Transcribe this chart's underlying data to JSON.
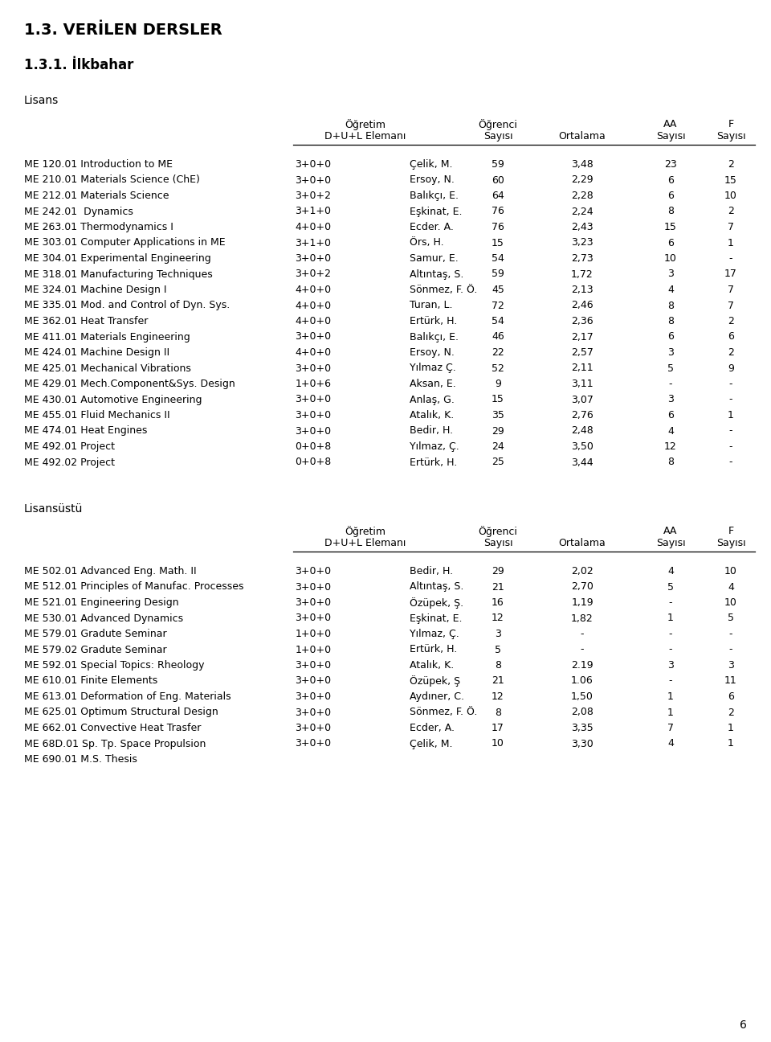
{
  "title": "1.3. VERİLEN DERSLER",
  "subtitle": "1.3.1. İlkbahar",
  "section1": "Lisans",
  "section2": "Lisansüstü",
  "lisans_rows": [
    [
      "ME 120.01 Introduction to ME",
      "3+0+0",
      "Çelik, M.",
      "59",
      "3,48",
      "23",
      "2"
    ],
    [
      "ME 210.01 Materials Science (ChE)",
      "3+0+0",
      "Ersoy, N.",
      "60",
      "2,29",
      "6",
      "15"
    ],
    [
      "ME 212.01 Materials Science",
      "3+0+2",
      "Balıkçı, E.",
      "64",
      "2,28",
      "6",
      "10"
    ],
    [
      "ME 242.01  Dynamics",
      "3+1+0",
      "Eşkinat, E.",
      "76",
      "2,24",
      "8",
      "2"
    ],
    [
      "ME 263.01 Thermodynamics I",
      "4+0+0",
      "Ecder. A.",
      "76",
      "2,43",
      "15",
      "7"
    ],
    [
      "ME 303.01 Computer Applications in ME",
      "3+1+0",
      "Örs, H.",
      "15",
      "3,23",
      "6",
      "1"
    ],
    [
      "ME 304.01 Experimental Engineering",
      "3+0+0",
      "Samur, E.",
      "54",
      "2,73",
      "10",
      "-"
    ],
    [
      "ME 318.01 Manufacturing Techniques",
      "3+0+2",
      "Altıntaş, S.",
      "59",
      "1,72",
      "3",
      "17"
    ],
    [
      "ME 324.01 Machine Design I",
      "4+0+0",
      "Sönmez, F. Ö.",
      "45",
      "2,13",
      "4",
      "7"
    ],
    [
      "ME 335.01 Mod. and Control of Dyn. Sys.",
      "4+0+0",
      "Turan, L.",
      "72",
      "2,46",
      "8",
      "7"
    ],
    [
      "ME 362.01 Heat Transfer",
      "4+0+0",
      "Ertürk, H.",
      "54",
      "2,36",
      "8",
      "2"
    ],
    [
      "ME 411.01 Materials Engineering",
      "3+0+0",
      "Balıkçı, E.",
      "46",
      "2,17",
      "6",
      "6"
    ],
    [
      "ME 424.01 Machine Design II",
      "4+0+0",
      "Ersoy, N.",
      "22",
      "2,57",
      "3",
      "2"
    ],
    [
      "ME 425.01 Mechanical Vibrations",
      "3+0+0",
      "Yılmaz Ç.",
      "52",
      "2,11",
      "5",
      "9"
    ],
    [
      "ME 429.01 Mech.Component&Sys. Design",
      "1+0+6",
      "Aksan, E.",
      "9",
      "3,11",
      "-",
      "-"
    ],
    [
      "ME 430.01 Automotive Engineering",
      "3+0+0",
      "Anlaş, G.",
      "15",
      "3,07",
      "3",
      "-"
    ],
    [
      "ME 455.01 Fluid Mechanics II",
      "3+0+0",
      "Atalık, K.",
      "35",
      "2,76",
      "6",
      "1"
    ],
    [
      "ME 474.01 Heat Engines",
      "3+0+0",
      "Bedir, H.",
      "29",
      "2,48",
      "4",
      "-"
    ],
    [
      "ME 492.01 Project",
      "0+0+8",
      "Yılmaz, Ç.",
      "24",
      "3,50",
      "12",
      "-"
    ],
    [
      "ME 492.02 Project",
      "0+0+8",
      "Ertürk, H.",
      "25",
      "3,44",
      "8",
      "-"
    ]
  ],
  "lisansustu_rows": [
    [
      "ME 502.01 Advanced Eng. Math. II",
      "3+0+0",
      "Bedir, H.",
      "29",
      "2,02",
      "4",
      "10"
    ],
    [
      "ME 512.01 Principles of Manufac. Processes",
      "3+0+0",
      "Altıntaş, S.",
      "21",
      "2,70",
      "5",
      "4"
    ],
    [
      "ME 521.01 Engineering Design",
      "3+0+0",
      "Özüpek, Ş.",
      "16",
      "1,19",
      "-",
      "10"
    ],
    [
      "ME 530.01 Advanced Dynamics",
      "3+0+0",
      "Eşkinat, E.",
      "12",
      "1,82",
      "1",
      "5"
    ],
    [
      "ME 579.01 Gradute Seminar",
      "1+0+0",
      "Yılmaz, Ç.",
      "3",
      "-",
      "-",
      "-"
    ],
    [
      "ME 579.02 Gradute Seminar",
      "1+0+0",
      "Ertürk, H.",
      "5",
      "-",
      "-",
      "-"
    ],
    [
      "ME 592.01 Special Topics: Rheology",
      "3+0+0",
      "Atalık, K.",
      "8",
      "2.19",
      "3",
      "3"
    ],
    [
      "ME 610.01 Finite Elements",
      "3+0+0",
      "Özüpek, Ş",
      "21",
      "1.06",
      "-",
      "11"
    ],
    [
      "ME 613.01 Deformation of Eng. Materials",
      "3+0+0",
      "Aydıner, C.",
      "12",
      "1,50",
      "1",
      "6"
    ],
    [
      "ME 625.01 Optimum Structural Design",
      "3+0+0",
      "Sönmez, F. Ö.",
      "8",
      "2,08",
      "1",
      "2"
    ],
    [
      "ME 662.01 Convective Heat Trasfer",
      "3+0+0",
      "Ecder, A.",
      "17",
      "3,35",
      "7",
      "1"
    ],
    [
      "ME 68D.01 Sp. Tp. Space Propulsion",
      "3+0+0",
      "Çelik, M.",
      "10",
      "3,30",
      "4",
      "1"
    ],
    [
      "ME 690.01 M.S. Thesis",
      "",
      "",
      "",
      "",
      "",
      ""
    ]
  ],
  "page_number": "6",
  "bg_color": "#ffffff",
  "text_color": "#000000"
}
